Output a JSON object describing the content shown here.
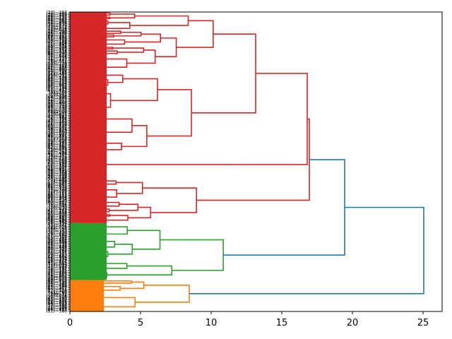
{
  "chart_data": {
    "type": "dendrogram",
    "orientation": "right",
    "title": "",
    "xlabel": "",
    "ylabel": "",
    "xlim": [
      0,
      26.35
    ],
    "x_ticks": [
      0,
      5,
      10,
      15,
      20,
      25
    ],
    "x_tick_labels": [
      "0",
      "5",
      "10",
      "15",
      "20",
      "25"
    ],
    "grid": false,
    "leaf_labels_note": "approximately 300 overlapping leaf labels, illegible",
    "leaf_count_estimate": 300,
    "colors": {
      "cluster_red": "#d62728",
      "cluster_green": "#2ca02c",
      "cluster_orange": "#ff7f0e",
      "above_threshold": "#1f77b4"
    },
    "clusters": [
      {
        "name": "red",
        "color": "#d62728",
        "leaf_fraction": 0.705,
        "merge_height": 16.95
      },
      {
        "name": "green",
        "color": "#2ca02c",
        "leaf_fraction": 0.19,
        "merge_height": 11.3
      },
      {
        "name": "orange",
        "color": "#ff7f0e",
        "leaf_fraction": 0.105,
        "merge_height": 9.25
      }
    ],
    "top_merges": [
      {
        "height": 19.45,
        "children": [
          "red",
          "green"
        ],
        "color": "#1f77b4"
      },
      {
        "height": 25.05,
        "children": [
          "red+green",
          "orange"
        ],
        "color": "#1f77b4"
      }
    ],
    "red_subtree_merges": [
      13.15,
      16.8,
      16.95,
      11.3,
      10.7,
      9.05,
      8.85,
      7.6,
      9.0,
      8.3,
      6.6,
      5.3,
      6.1,
      5.1
    ]
  }
}
